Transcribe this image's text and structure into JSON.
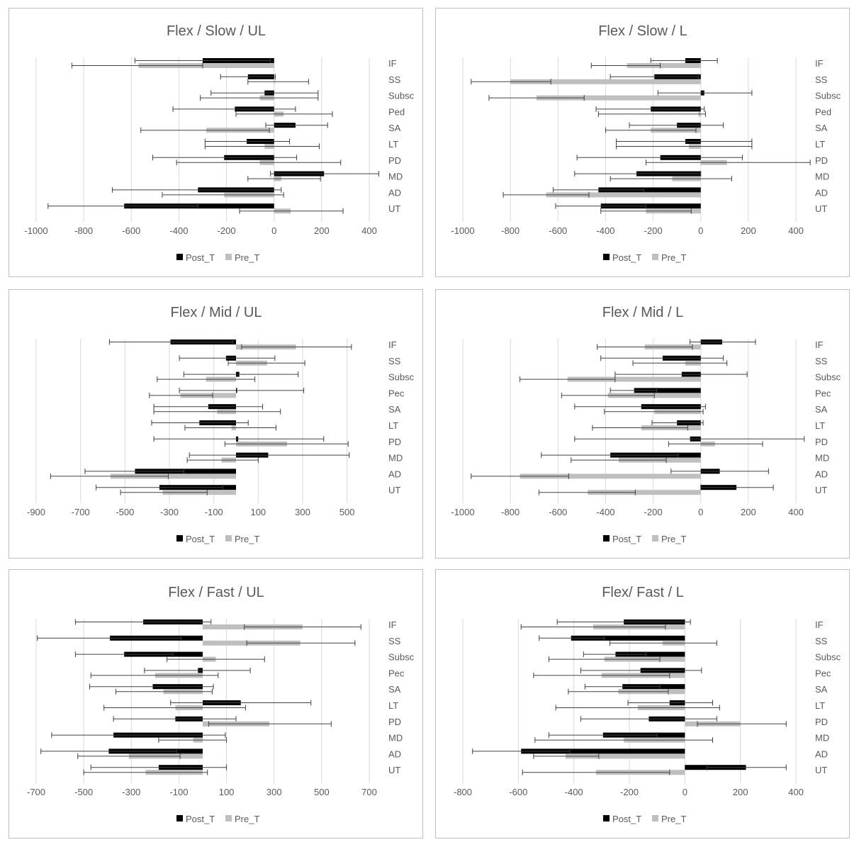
{
  "legend": {
    "post": "Post_T",
    "pre": "Pre_T"
  },
  "colors": {
    "post": "#000000",
    "pre": "#bfbfbf",
    "grid": "#d9d9d9",
    "err": "#404040"
  },
  "chart_data": [
    {
      "type": "bar",
      "orientation": "horizontal",
      "title": "Flex / Slow / UL",
      "categories": [
        "IF",
        "SS",
        "Subsc",
        "Ped",
        "SA",
        "LT",
        "PD",
        "MD",
        "AD",
        "UT"
      ],
      "xlim": [
        -1000,
        400
      ],
      "xticks": [
        -1000,
        -800,
        -600,
        -400,
        -200,
        0,
        200,
        400
      ],
      "series": [
        {
          "name": "Post_T",
          "values": [
            -300,
            -110,
            -40,
            -165,
            90,
            -115,
            -210,
            210,
            -320,
            -630
          ],
          "err_low": [
            -585,
            -225,
            -265,
            -425,
            -35,
            -290,
            -510,
            -15,
            -680,
            -950
          ],
          "err_high": [
            -15,
            5,
            185,
            90,
            225,
            65,
            95,
            440,
            30,
            -320
          ]
        },
        {
          "name": "Pre_T",
          "values": [
            -570,
            0,
            -60,
            40,
            -285,
            -40,
            -60,
            30,
            -210,
            70
          ],
          "err_low": [
            -850,
            -110,
            -310,
            -160,
            -560,
            -290,
            -410,
            -110,
            -470,
            -145
          ],
          "err_high": [
            -300,
            145,
            185,
            245,
            -20,
            190,
            280,
            195,
            40,
            290
          ]
        }
      ]
    },
    {
      "type": "bar",
      "orientation": "horizontal",
      "title": "Flex / Slow / L",
      "categories": [
        "IF",
        "SS",
        "Subsc",
        "Ped",
        "SA",
        "LT",
        "PD",
        "MD",
        "AD",
        "UT"
      ],
      "xlim": [
        -1000,
        400
      ],
      "xticks": [
        -1000,
        -800,
        -600,
        -400,
        -200,
        0,
        200,
        400
      ],
      "series": [
        {
          "name": "Post_T",
          "values": [
            -65,
            -195,
            15,
            -210,
            -100,
            -65,
            -170,
            -270,
            -430,
            -420
          ],
          "err_low": [
            -210,
            -380,
            -180,
            -440,
            -300,
            -355,
            -520,
            -530,
            -620,
            -610
          ],
          "err_high": [
            70,
            -10,
            215,
            15,
            95,
            215,
            175,
            0,
            -240,
            -230
          ]
        },
        {
          "name": "Pre_T",
          "values": [
            -310,
            -800,
            -690,
            -10,
            -210,
            -50,
            110,
            -120,
            -650,
            -230
          ],
          "err_low": [
            -460,
            -965,
            -890,
            -430,
            -400,
            -355,
            -230,
            -380,
            -830,
            -420
          ],
          "err_high": [
            -170,
            -630,
            -490,
            20,
            -20,
            215,
            460,
            130,
            -470,
            -40
          ]
        }
      ]
    },
    {
      "type": "bar",
      "orientation": "horizontal",
      "title": "Flex / Mid / UL",
      "categories": [
        "IF",
        "SS",
        "Subsc",
        "Pec",
        "SA",
        "LT",
        "PD",
        "MD",
        "AD",
        "UT"
      ],
      "xlim": [
        -900,
        600
      ],
      "xticks": [
        -900,
        -700,
        -500,
        -300,
        -100,
        100,
        300,
        500
      ],
      "series": [
        {
          "name": "Post_T",
          "values": [
            -295,
            -45,
            15,
            5,
            -125,
            -165,
            10,
            145,
            -455,
            -345
          ],
          "err_low": [
            -570,
            -255,
            -235,
            -255,
            -370,
            -380,
            -370,
            -210,
            -680,
            -630
          ],
          "err_high": [
            -15,
            175,
            280,
            305,
            120,
            55,
            395,
            510,
            -235,
            -60
          ]
        },
        {
          "name": "Pre_T",
          "values": [
            270,
            140,
            -135,
            -250,
            -85,
            -20,
            230,
            -65,
            -565,
            -330
          ],
          "err_low": [
            25,
            -35,
            -355,
            -390,
            -370,
            -230,
            -50,
            -220,
            -835,
            -520
          ],
          "err_high": [
            520,
            310,
            85,
            -105,
            200,
            180,
            505,
            100,
            -305,
            -130
          ]
        }
      ]
    },
    {
      "type": "bar",
      "orientation": "horizontal",
      "title": "Flex / Mid / L",
      "categories": [
        "IF",
        "SS",
        "Subsc",
        "Pec",
        "SA",
        "LT",
        "PD",
        "MD",
        "AD",
        "UT"
      ],
      "xlim": [
        -1000,
        400
      ],
      "xticks": [
        -1000,
        -800,
        -600,
        -400,
        -200,
        0,
        200,
        400
      ],
      "series": [
        {
          "name": "Post_T",
          "values": [
            90,
            -160,
            -80,
            -280,
            -250,
            -100,
            -45,
            -380,
            80,
            150
          ],
          "err_low": [
            -45,
            -420,
            -360,
            -380,
            -530,
            -205,
            -530,
            -670,
            -125,
            0
          ],
          "err_high": [
            230,
            95,
            195,
            -185,
            20,
            10,
            435,
            -95,
            285,
            305
          ]
        },
        {
          "name": "Pre_T",
          "values": [
            -235,
            -65,
            -560,
            -390,
            -195,
            -250,
            60,
            -345,
            -760,
            -475
          ],
          "err_low": [
            -435,
            -285,
            -760,
            -585,
            -405,
            -455,
            -135,
            -545,
            -965,
            -680
          ],
          "err_high": [
            -35,
            110,
            -360,
            -195,
            10,
            -55,
            260,
            -145,
            -555,
            -275
          ]
        }
      ]
    },
    {
      "type": "bar",
      "orientation": "horizontal",
      "title": "Flex / Fast / UL",
      "categories": [
        "IF",
        "SS",
        "Subsc",
        "Pec",
        "SA",
        "LT",
        "PD",
        "MD",
        "AD",
        "UT"
      ],
      "xlim": [
        -700,
        700
      ],
      "xticks": [
        -700,
        -500,
        -300,
        -100,
        100,
        300,
        500,
        700
      ],
      "series": [
        {
          "name": "Post_T",
          "values": [
            -250,
            -390,
            -330,
            -20,
            -210,
            160,
            -115,
            -375,
            -395,
            -185
          ],
          "err_low": [
            -535,
            -695,
            -535,
            -245,
            -475,
            -135,
            -375,
            -635,
            -680,
            -470
          ],
          "err_high": [
            35,
            -90,
            -125,
            200,
            45,
            455,
            140,
            95,
            -110,
            100
          ]
        },
        {
          "name": "Pre_T",
          "values": [
            420,
            410,
            55,
            -200,
            -165,
            -115,
            280,
            -40,
            -310,
            -240
          ],
          "err_low": [
            175,
            185,
            -150,
            -470,
            -365,
            -415,
            25,
            -185,
            -525,
            -500
          ],
          "err_high": [
            665,
            640,
            260,
            65,
            40,
            180,
            540,
            100,
            -95,
            20
          ]
        }
      ]
    },
    {
      "type": "bar",
      "orientation": "horizontal",
      "title": "Flex/ Fast / L",
      "categories": [
        "IF",
        "SS",
        "Subsc",
        "Pec",
        "SA",
        "LT",
        "PD",
        "MD",
        "AD",
        "UT"
      ],
      "xlim": [
        -800,
        400
      ],
      "xticks": [
        -800,
        -600,
        -400,
        -200,
        0,
        200,
        400
      ],
      "series": [
        {
          "name": "Post_T",
          "values": [
            -220,
            -410,
            -250,
            -160,
            -225,
            -55,
            -130,
            -295,
            -590,
            220
          ],
          "err_low": [
            -460,
            -525,
            -365,
            -375,
            -360,
            -205,
            -375,
            -490,
            -765,
            80
          ],
          "err_high": [
            20,
            -290,
            -140,
            60,
            -90,
            100,
            115,
            -100,
            -415,
            365
          ]
        },
        {
          "name": "Pre_T",
          "values": [
            -330,
            -80,
            -290,
            -300,
            -240,
            -170,
            200,
            -220,
            -430,
            -320
          ],
          "err_low": [
            -590,
            -270,
            -490,
            -545,
            -420,
            -465,
            45,
            -540,
            -545,
            -585
          ],
          "err_high": [
            -70,
            115,
            -90,
            -55,
            -60,
            125,
            365,
            100,
            -310,
            -55
          ]
        }
      ]
    }
  ]
}
